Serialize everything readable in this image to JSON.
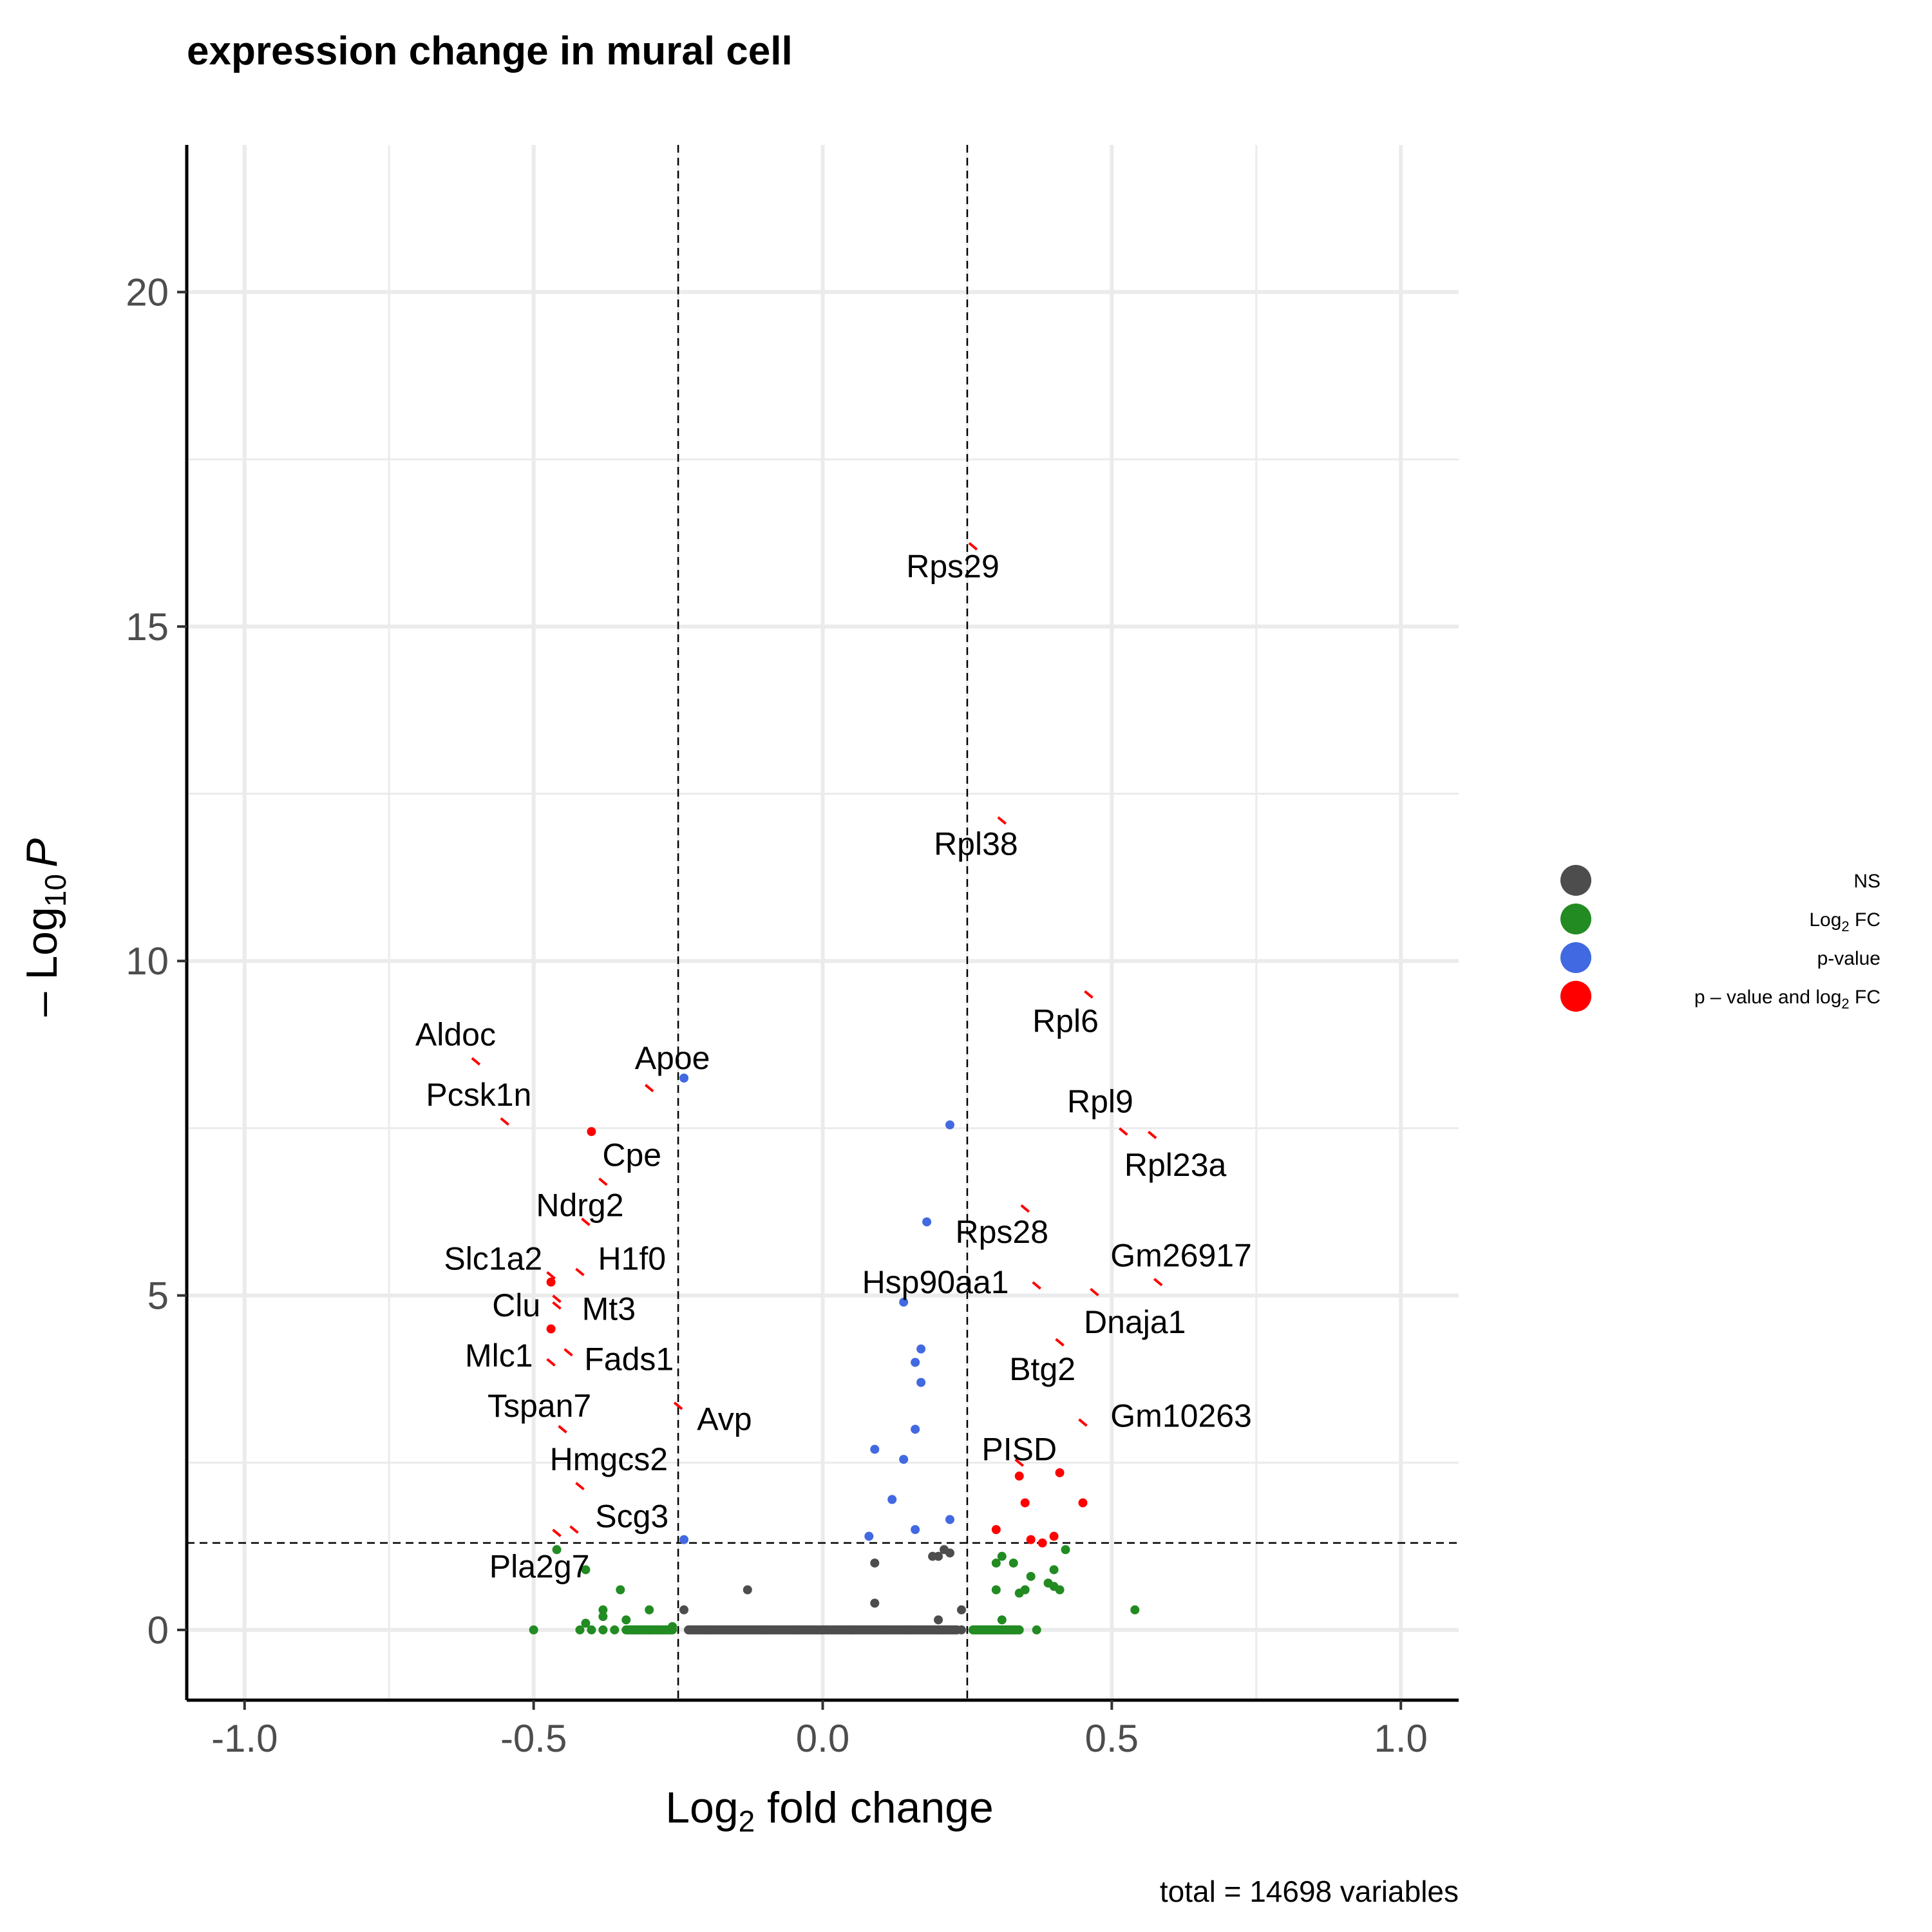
{
  "chart_data": {
    "type": "scatter",
    "title": "expression change in  mural cell",
    "xlabel": {
      "main": "Log",
      "sub": "2",
      "rest": " fold change"
    },
    "ylabel": {
      "prefix": "– Log",
      "sub": "10",
      "italic": "P"
    },
    "caption": "total = 14698 variables",
    "xlim": [
      -1.1,
      1.1
    ],
    "ylim": [
      -1.05,
      22.2
    ],
    "xticks": [
      -1.0,
      -0.5,
      0.0,
      0.5,
      1.0
    ],
    "xtick_labels": [
      "-1.0",
      "-0.5",
      "0.0",
      "0.5",
      "1.0"
    ],
    "yticks": [
      0,
      5,
      10,
      15,
      20
    ],
    "ytick_labels": [
      "0",
      "5",
      "10",
      "15",
      "20"
    ],
    "grid": true,
    "thresholds": {
      "fc": [
        -0.25,
        0.25
      ],
      "p_line_y": 1.3
    },
    "legend": {
      "position": "right",
      "items": [
        {
          "key": "ns",
          "label": "NS",
          "color": "#4d4d4d"
        },
        {
          "key": "fc",
          "label": "Log",
          "sub": "2",
          "label_rest": " FC",
          "color": "#228b22"
        },
        {
          "key": "p",
          "label": "p-value",
          "color": "#4169e1"
        },
        {
          "key": "both",
          "label": "p – value and log",
          "sub": "2",
          "label_rest": " FC",
          "color": "#ff0000"
        }
      ]
    },
    "series": [
      {
        "key": "ns",
        "color": "#4d4d4d",
        "points": [
          [
            -0.24,
            0.3
          ],
          [
            -0.13,
            0.6
          ],
          [
            0.09,
            1.0
          ],
          [
            0.09,
            0.4
          ],
          [
            0.2,
            1.1
          ],
          [
            0.21,
            1.2
          ],
          [
            0.22,
            1.15
          ],
          [
            0.19,
            1.1
          ],
          [
            0.24,
            0.3
          ],
          [
            0.2,
            0.15
          ],
          [
            -0.2,
            0.0
          ],
          [
            -0.15,
            0.0
          ],
          [
            -0.1,
            0.0
          ],
          [
            -0.05,
            0.0
          ],
          [
            0.0,
            0.0
          ],
          [
            0.05,
            0.0
          ],
          [
            0.1,
            0.0
          ],
          [
            0.15,
            0.0
          ],
          [
            0.2,
            0.0
          ],
          [
            0.24,
            0.0
          ]
        ]
      },
      {
        "key": "fc",
        "color": "#228b22",
        "points": [
          [
            -0.5,
            0.0
          ],
          [
            -0.42,
            0.0
          ],
          [
            -0.4,
            0.0
          ],
          [
            -0.38,
            0.0
          ],
          [
            -0.36,
            0.0
          ],
          [
            -0.34,
            0.0
          ],
          [
            -0.32,
            0.0
          ],
          [
            -0.3,
            0.0
          ],
          [
            -0.28,
            0.0
          ],
          [
            -0.26,
            0.0
          ],
          [
            -0.46,
            1.2
          ],
          [
            -0.41,
            0.9
          ],
          [
            -0.41,
            0.1
          ],
          [
            -0.38,
            0.3
          ],
          [
            -0.38,
            0.2
          ],
          [
            -0.35,
            0.6
          ],
          [
            -0.34,
            0.15
          ],
          [
            -0.3,
            0.3
          ],
          [
            -0.26,
            0.05
          ],
          [
            0.26,
            0.0
          ],
          [
            0.28,
            0.0
          ],
          [
            0.3,
            0.0
          ],
          [
            0.32,
            0.0
          ],
          [
            0.34,
            0.0
          ],
          [
            0.37,
            0.0
          ],
          [
            0.3,
            1.0
          ],
          [
            0.31,
            1.1
          ],
          [
            0.3,
            0.6
          ],
          [
            0.33,
            1.0
          ],
          [
            0.34,
            0.55
          ],
          [
            0.35,
            0.6
          ],
          [
            0.36,
            0.8
          ],
          [
            0.39,
            0.7
          ],
          [
            0.4,
            0.9
          ],
          [
            0.4,
            0.65
          ],
          [
            0.41,
            0.6
          ],
          [
            0.42,
            1.2
          ],
          [
            0.31,
            0.15
          ],
          [
            0.54,
            0.3
          ]
        ]
      },
      {
        "key": "p",
        "color": "#4169e1",
        "points": [
          [
            -0.24,
            8.25
          ],
          [
            0.22,
            7.55
          ],
          [
            0.18,
            6.1
          ],
          [
            0.14,
            4.9
          ],
          [
            0.17,
            4.2
          ],
          [
            0.16,
            4.0
          ],
          [
            0.17,
            3.7
          ],
          [
            0.16,
            3.0
          ],
          [
            0.09,
            2.7
          ],
          [
            0.14,
            2.55
          ],
          [
            0.12,
            1.95
          ],
          [
            0.16,
            1.5
          ],
          [
            0.22,
            1.65
          ],
          [
            0.08,
            1.4
          ],
          [
            -0.24,
            1.35
          ]
        ]
      },
      {
        "key": "both",
        "color": "#ff0000",
        "points": [
          [
            -0.47,
            5.2
          ],
          [
            -0.47,
            4.5
          ],
          [
            -0.4,
            7.45
          ],
          [
            0.34,
            2.3
          ],
          [
            0.41,
            2.35
          ],
          [
            0.35,
            1.9
          ],
          [
            0.45,
            1.9
          ],
          [
            0.3,
            1.5
          ],
          [
            0.36,
            1.35
          ],
          [
            0.38,
            1.3
          ],
          [
            0.4,
            1.4
          ]
        ]
      }
    ],
    "labels": [
      {
        "gene": "Rps29",
        "x": 0.26,
        "y": 16.2,
        "ax": 0.225,
        "ay": 15.9
      },
      {
        "gene": "Rpl38",
        "x": 0.31,
        "y": 12.1,
        "ax": 0.265,
        "ay": 11.75
      },
      {
        "gene": "Rpl6",
        "x": 0.46,
        "y": 9.5,
        "ax": 0.42,
        "ay": 9.1
      },
      {
        "gene": "Rpl9",
        "x": 0.52,
        "y": 7.45,
        "ax": 0.48,
        "ay": 7.9
      },
      {
        "gene": "Rpl23a",
        "x": 0.57,
        "y": 7.4,
        "ax": 0.61,
        "ay": 6.95
      },
      {
        "gene": "Rps28",
        "x": 0.35,
        "y": 6.3,
        "ax": 0.31,
        "ay": 5.95
      },
      {
        "gene": "Gm26917",
        "x": 0.58,
        "y": 5.2,
        "ax": 0.62,
        "ay": 5.6
      },
      {
        "gene": "Hsp90aa1",
        "x": 0.37,
        "y": 5.15,
        "ax": 0.195,
        "ay": 5.2
      },
      {
        "gene": "Dnaja1",
        "x": 0.47,
        "y": 5.05,
        "ax": 0.54,
        "ay": 4.6
      },
      {
        "gene": "Btg2",
        "x": 0.41,
        "y": 4.3,
        "ax": 0.38,
        "ay": 3.9
      },
      {
        "gene": "Gm10263",
        "x": 0.45,
        "y": 3.1,
        "ax": 0.62,
        "ay": 3.2
      },
      {
        "gene": "PISD",
        "x": 0.34,
        "y": 2.5,
        "ax": 0.34,
        "ay": 2.7
      },
      {
        "gene": "Aldoc",
        "x": -0.6,
        "y": 8.5,
        "ax": -0.635,
        "ay": 8.9
      },
      {
        "gene": "Apoe",
        "x": -0.3,
        "y": 8.1,
        "ax": -0.26,
        "ay": 8.55
      },
      {
        "gene": "Pcsk1n",
        "x": -0.55,
        "y": 7.6,
        "ax": -0.595,
        "ay": 8.0
      },
      {
        "gene": "Cpe",
        "x": -0.38,
        "y": 6.7,
        "ax": -0.33,
        "ay": 7.1
      },
      {
        "gene": "Ndrg2",
        "x": -0.41,
        "y": 6.1,
        "ax": -0.42,
        "ay": 6.35
      },
      {
        "gene": "Slc1a2",
        "x": -0.47,
        "y": 5.3,
        "ax": -0.57,
        "ay": 5.55
      },
      {
        "gene": "H1f0",
        "x": -0.42,
        "y": 5.35,
        "ax": -0.33,
        "ay": 5.55
      },
      {
        "gene": "Clu",
        "x": -0.46,
        "y": 4.95,
        "ax": -0.53,
        "ay": 4.85
      },
      {
        "gene": "Mt3",
        "x": -0.46,
        "y": 4.85,
        "ax": -0.37,
        "ay": 4.8
      },
      {
        "gene": "Mlc1",
        "x": -0.47,
        "y": 4.0,
        "ax": -0.56,
        "ay": 4.1
      },
      {
        "gene": "Fads1",
        "x": -0.44,
        "y": 4.15,
        "ax": -0.335,
        "ay": 4.05
      },
      {
        "gene": "Tspan7",
        "x": -0.45,
        "y": 3.0,
        "ax": -0.49,
        "ay": 3.35
      },
      {
        "gene": "Avp",
        "x": -0.25,
        "y": 3.35,
        "ax": -0.17,
        "ay": 3.15
      },
      {
        "gene": "Hmgcs2",
        "x": -0.42,
        "y": 2.15,
        "ax": -0.37,
        "ay": 2.55
      },
      {
        "gene": "Scg3",
        "x": -0.43,
        "y": 1.5,
        "ax": -0.33,
        "ay": 1.7
      },
      {
        "gene": "Pla2g7",
        "x": -0.46,
        "y": 1.45,
        "ax": -0.49,
        "ay": 0.95
      }
    ]
  }
}
